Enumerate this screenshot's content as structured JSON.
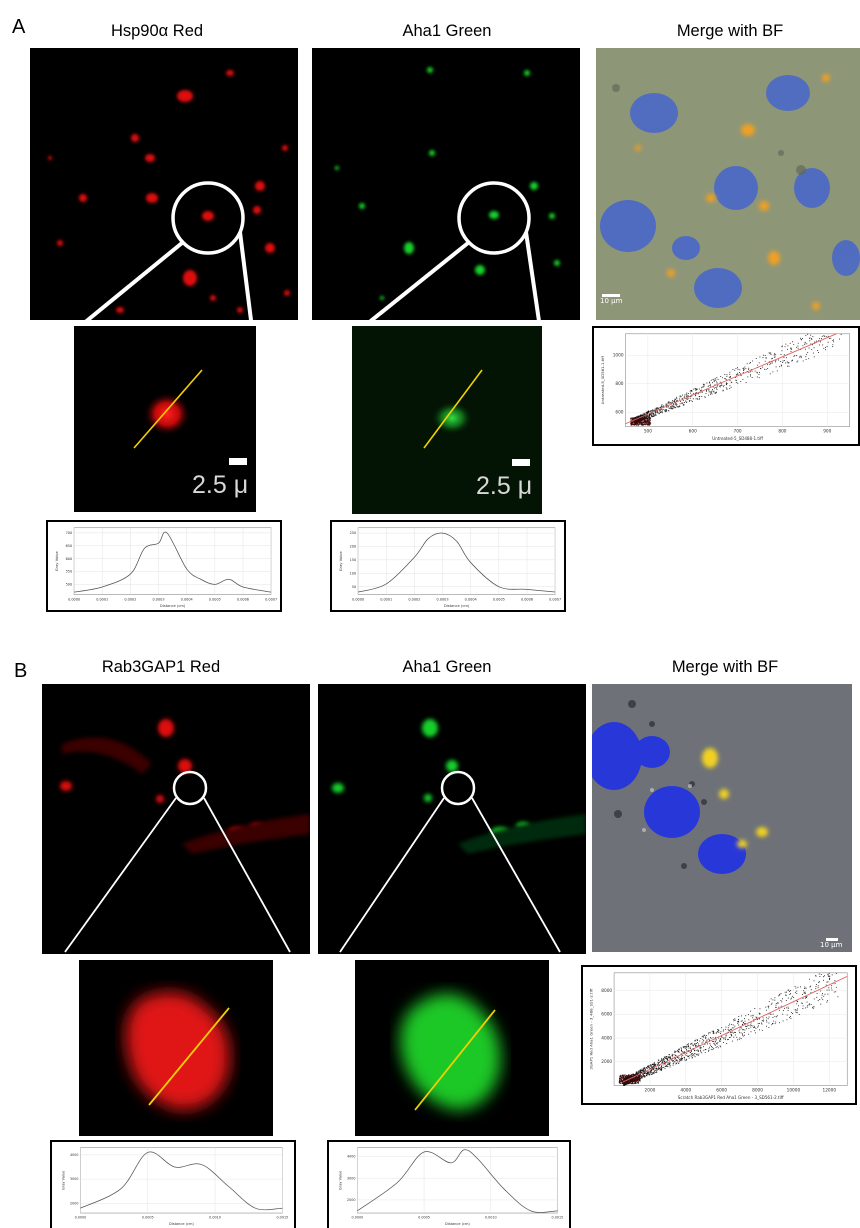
{
  "figure": {
    "panel_a": {
      "label": "A",
      "titles": [
        "Hsp90α Red",
        "Aha1 Green",
        "Merge with BF"
      ],
      "scale_zoom": "2.5 μ",
      "merge_scale": "10 μm",
      "scatter": {
        "xlabel": "Untreated-5_SD488-1.tiff",
        "ylabel": "Untreated-5_SD561-1.tiff"
      },
      "profile_red": {
        "xlabel": "Distance (cm)",
        "ylabel": "Gray Value"
      },
      "profile_green": {
        "xlabel": "Distance (cm)",
        "ylabel": "Gray Value"
      }
    },
    "panel_b": {
      "label": "B",
      "titles": [
        "Rab3GAP1 Red",
        "Aha1 Green",
        "Merge with BF"
      ],
      "merge_scale": "10 μm",
      "scatter": {
        "xlabel": "Scratch Rab3GAP1 Red Aha1 Green - 3_SD561-2.tiff",
        "ylabel": "3GAP1 Red Aha1 Green - 3_488_SS1-2.tiff"
      },
      "profile_red": {
        "xlabel": "Distance (cm)",
        "ylabel": "Gray Value"
      },
      "profile_green": {
        "xlabel": "Distance (cm)",
        "ylabel": "Gray Value"
      }
    }
  },
  "chart_data": [
    {
      "type": "line",
      "x": [
        0,
        0.0001,
        0.0002,
        0.00025,
        0.0003,
        0.00033,
        0.0004,
        0.00045,
        0.0005,
        0.00055,
        0.0006,
        0.0007
      ],
      "y": [
        470,
        490,
        540,
        640,
        660,
        700,
        560,
        520,
        500,
        520,
        490,
        470
      ],
      "xticks": [
        "0.0000",
        "0.0001",
        "0.0002",
        "0.0003",
        "0.0004",
        "0.0005",
        "0.0006",
        "0.0007"
      ],
      "yticks": [
        "500",
        "550",
        "600",
        "650",
        "700"
      ],
      "xlim": [
        0,
        0.0007
      ],
      "ylim": [
        460,
        720
      ],
      "xlabel": "Distance (cm)",
      "ylabel": "Gray Value"
    },
    {
      "type": "line",
      "x": [
        0,
        0.0001,
        0.0002,
        0.00025,
        0.0003,
        0.00035,
        0.0004,
        0.0005,
        0.0006,
        0.0007
      ],
      "y": [
        30,
        60,
        160,
        230,
        250,
        220,
        140,
        50,
        40,
        30
      ],
      "xticks": [
        "0.0000",
        "0.0001",
        "0.0002",
        "0.0003",
        "0.0004",
        "0.0005",
        "0.0006",
        "0.0007"
      ],
      "yticks": [
        "50",
        "100",
        "150",
        "200",
        "250"
      ],
      "xlim": [
        0,
        0.0007
      ],
      "ylim": [
        20,
        270
      ],
      "xlabel": "Distance (cm)",
      "ylabel": "Gray Value"
    },
    {
      "type": "scatter",
      "xticks": [
        "500",
        "600",
        "700",
        "800",
        "900"
      ],
      "yticks": [
        "600",
        "800",
        "1000"
      ],
      "xlim": [
        450,
        950
      ],
      "ylim": [
        500,
        1150
      ],
      "fit_line": {
        "x": [
          450,
          920
        ],
        "y": [
          520,
          1150
        ]
      },
      "xlabel": "Untreated-5_SD488-1.tiff",
      "ylabel": "Untreated-5_SD561-1.tiff"
    },
    {
      "type": "line",
      "x": [
        0,
        0.0003,
        0.0005,
        0.0007,
        0.0009,
        0.0011,
        0.0013,
        0.0015
      ],
      "y": [
        1800,
        2600,
        4100,
        3500,
        3600,
        2700,
        1800,
        1800
      ],
      "xticks": [
        "0.0000",
        "0.0005",
        "0.0010",
        "0.0015"
      ],
      "yticks": [
        "2000",
        "3000",
        "4000"
      ],
      "xlim": [
        0,
        0.0015
      ],
      "ylim": [
        1600,
        4300
      ],
      "xlabel": "Distance (cm)",
      "ylabel": "Gray Value"
    },
    {
      "type": "line",
      "x": [
        0,
        0.0003,
        0.0005,
        0.0007,
        0.0008,
        0.0009,
        0.0011,
        0.0013,
        0.0015
      ],
      "y": [
        1500,
        2800,
        4200,
        3700,
        4300,
        3900,
        2500,
        1500,
        1500
      ],
      "xticks": [
        "0.0000",
        "0.0005",
        "0.0010",
        "0.0015"
      ],
      "yticks": [
        "2000",
        "3000",
        "4000"
      ],
      "xlim": [
        0,
        0.0015
      ],
      "ylim": [
        1400,
        4400
      ],
      "xlabel": "Distance (cm)",
      "ylabel": "Gray Value"
    },
    {
      "type": "scatter",
      "xticks": [
        "2000",
        "4000",
        "6000",
        "8000",
        "10000",
        "12000"
      ],
      "yticks": [
        "2000",
        "4000",
        "6000",
        "8000"
      ],
      "xlim": [
        0,
        13000
      ],
      "ylim": [
        0,
        9500
      ],
      "fit_line": {
        "x": [
          500,
          13000
        ],
        "y": [
          300,
          9200
        ]
      },
      "xlabel": "Scratch Rab3GAP1 Red Aha1 Green - 3_SD561-2.tiff",
      "ylabel": "3GAP1 Red Aha1 Green - 3_488_SS1-2.tiff"
    }
  ]
}
